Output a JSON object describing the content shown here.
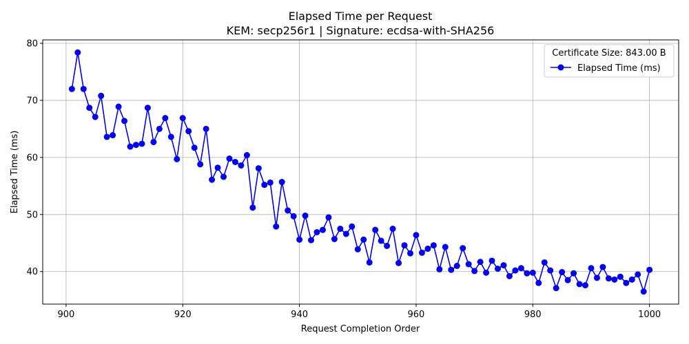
{
  "chart_data": {
    "type": "line",
    "title": "Elapsed Time per Request",
    "subtitle": "KEM: secp256r1 | Signature: ecdsa-with-SHA256",
    "xlabel": "Request Completion Order",
    "ylabel": "Elapsed Time (ms)",
    "xlim": [
      896,
      1005
    ],
    "ylim": [
      34.3,
      80.6
    ],
    "xticks": [
      900,
      920,
      940,
      960,
      980,
      1000
    ],
    "yticks": [
      40,
      50,
      60,
      70,
      80
    ],
    "grid": true,
    "legend": {
      "title": "Certificate Size: 843.00 B",
      "placement": "top-right",
      "entries": [
        "Elapsed Time (ms)"
      ]
    },
    "series": [
      {
        "name": "Elapsed Time (ms)",
        "color": "#0000ff",
        "marker": "circle",
        "x": [
          901,
          902,
          903,
          904,
          905,
          906,
          907,
          908,
          909,
          910,
          911,
          912,
          913,
          914,
          915,
          916,
          917,
          918,
          919,
          920,
          921,
          922,
          923,
          924,
          925,
          926,
          927,
          928,
          929,
          930,
          931,
          932,
          933,
          934,
          935,
          936,
          937,
          938,
          939,
          940,
          941,
          942,
          943,
          944,
          945,
          946,
          947,
          948,
          949,
          950,
          951,
          952,
          953,
          954,
          955,
          956,
          957,
          958,
          959,
          960,
          961,
          962,
          963,
          964,
          965,
          966,
          967,
          968,
          969,
          970,
          971,
          972,
          973,
          974,
          975,
          976,
          977,
          978,
          979,
          980,
          981,
          982,
          983,
          984,
          985,
          986,
          987,
          988,
          989,
          990,
          991,
          992,
          993,
          994,
          995,
          996,
          997,
          998,
          999,
          1000
        ],
        "values": [
          72.0,
          78.4,
          72.0,
          68.7,
          67.1,
          70.8,
          63.6,
          63.9,
          68.9,
          66.4,
          61.9,
          62.2,
          62.4,
          68.7,
          62.7,
          65.0,
          66.9,
          63.6,
          59.7,
          66.9,
          64.6,
          61.7,
          58.8,
          65.0,
          56.1,
          58.2,
          56.6,
          59.8,
          59.2,
          58.6,
          60.4,
          51.2,
          58.1,
          55.2,
          55.6,
          47.9,
          55.7,
          50.7,
          49.7,
          45.6,
          49.8,
          45.5,
          46.9,
          47.3,
          49.5,
          45.7,
          47.5,
          46.6,
          47.9,
          43.9,
          45.6,
          41.6,
          47.3,
          45.4,
          44.5,
          47.5,
          41.5,
          44.6,
          43.2,
          46.4,
          43.3,
          44.0,
          44.6,
          40.4,
          44.3,
          40.3,
          41.0,
          44.1,
          41.3,
          40.1,
          41.7,
          39.8,
          41.9,
          40.5,
          41.1,
          39.2,
          40.2,
          40.6,
          39.7,
          39.8,
          38.0,
          41.6,
          40.2,
          37.1,
          39.9,
          38.5,
          39.7,
          37.8,
          37.6,
          40.6,
          38.9,
          40.8,
          38.8,
          38.6,
          39.1,
          38.0,
          38.6,
          39.5,
          36.5,
          40.3
        ]
      }
    ]
  }
}
